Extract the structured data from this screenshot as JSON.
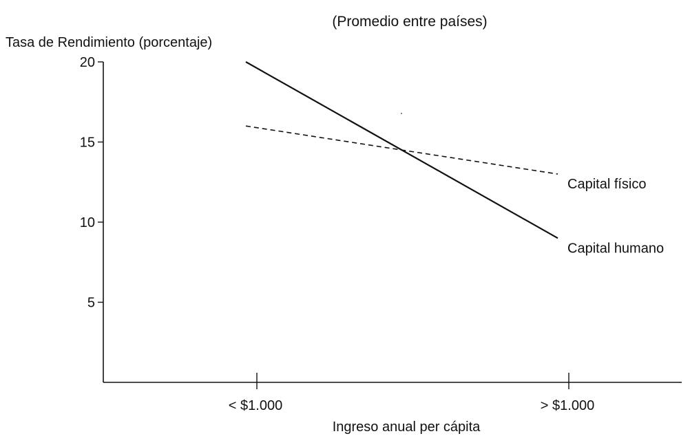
{
  "chart_data": {
    "type": "line",
    "title": "",
    "subtitle": "(Promedio entre países)",
    "xlabel": "Ingreso anual per cápita",
    "ylabel": "Tasa de Rendimiento (porcentaje)",
    "categories": [
      "< $1.000",
      "> $1.000"
    ],
    "y_ticks": [
      5,
      10,
      15,
      20
    ],
    "ylim": [
      0,
      20
    ],
    "grid": false,
    "series": [
      {
        "name": "Capital humano",
        "style": "solid",
        "color": "#111111",
        "values": [
          20,
          9
        ]
      },
      {
        "name": "Capital físico",
        "style": "dashed",
        "color": "#111111",
        "values": [
          16,
          13
        ]
      }
    ]
  }
}
